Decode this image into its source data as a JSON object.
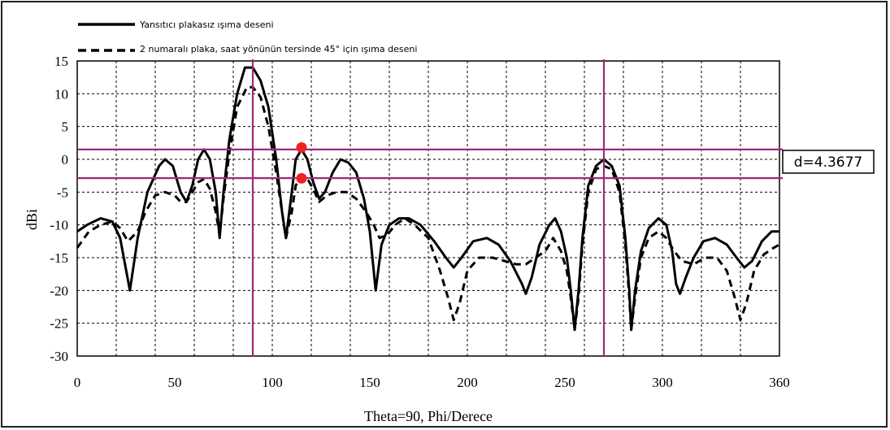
{
  "chart_data": {
    "type": "line",
    "title": "",
    "xlabel": "Theta=90, Phi/Derece",
    "ylabel": "dBi",
    "xlim": [
      0,
      360
    ],
    "ylim": [
      -30,
      15
    ],
    "xticks": [
      0,
      50,
      100,
      150,
      200,
      250,
      300,
      360
    ],
    "yticks": [
      15,
      10,
      5,
      0,
      -5,
      -10,
      -15,
      -20,
      -25,
      -30
    ],
    "grid": true,
    "legend_position": "top-left",
    "series": [
      {
        "name": "Yansıtıcı plakasız ışıma deseni",
        "style": "solid",
        "color": "#000000",
        "points": [
          [
            0,
            -11
          ],
          [
            5,
            -10
          ],
          [
            12,
            -9
          ],
          [
            18,
            -9.5
          ],
          [
            22,
            -12
          ],
          [
            27,
            -20
          ],
          [
            31,
            -12
          ],
          [
            36,
            -5
          ],
          [
            42,
            -1
          ],
          [
            45,
            0
          ],
          [
            49,
            -1
          ],
          [
            53,
            -5
          ],
          [
            56,
            -6.5
          ],
          [
            59,
            -4
          ],
          [
            62,
            0
          ],
          [
            65,
            1.5
          ],
          [
            68,
            0
          ],
          [
            71,
            -5
          ],
          [
            73,
            -12
          ],
          [
            75,
            -5
          ],
          [
            78,
            3
          ],
          [
            82,
            10
          ],
          [
            86,
            14
          ],
          [
            90,
            14
          ],
          [
            94,
            12
          ],
          [
            98,
            8
          ],
          [
            102,
            0
          ],
          [
            105,
            -8
          ],
          [
            107,
            -12
          ],
          [
            110,
            -5
          ],
          [
            112,
            0
          ],
          [
            115,
            1.5
          ],
          [
            118,
            0
          ],
          [
            121,
            -3.5
          ],
          [
            124,
            -6
          ],
          [
            127,
            -5
          ],
          [
            131,
            -2
          ],
          [
            135,
            0
          ],
          [
            139,
            -0.5
          ],
          [
            143,
            -2
          ],
          [
            147,
            -6
          ],
          [
            150,
            -11
          ],
          [
            153,
            -20
          ],
          [
            156,
            -13
          ],
          [
            160,
            -10
          ],
          [
            165,
            -9
          ],
          [
            170,
            -9
          ],
          [
            176,
            -10
          ],
          [
            183,
            -12.5
          ],
          [
            189,
            -15
          ],
          [
            193,
            -16.5
          ],
          [
            197,
            -15
          ],
          [
            203,
            -12.5
          ],
          [
            210,
            -12
          ],
          [
            216,
            -13
          ],
          [
            222,
            -15.5
          ],
          [
            228,
            -19
          ],
          [
            230,
            -20.5
          ],
          [
            233,
            -18
          ],
          [
            237,
            -13
          ],
          [
            242,
            -10
          ],
          [
            245,
            -9
          ],
          [
            248,
            -11
          ],
          [
            251,
            -15
          ],
          [
            253,
            -20
          ],
          [
            255,
            -26
          ],
          [
            257,
            -20
          ],
          [
            259,
            -12
          ],
          [
            262,
            -4
          ],
          [
            266,
            -1
          ],
          [
            270,
            0
          ],
          [
            274,
            -1
          ],
          [
            278,
            -4
          ],
          [
            281,
            -12
          ],
          [
            283,
            -20
          ],
          [
            284,
            -26
          ],
          [
            286,
            -20
          ],
          [
            289,
            -14
          ],
          [
            293,
            -10.5
          ],
          [
            298,
            -9
          ],
          [
            302,
            -10
          ],
          [
            305,
            -14
          ],
          [
            307,
            -19
          ],
          [
            309,
            -20.5
          ],
          [
            312,
            -18
          ],
          [
            316,
            -15
          ],
          [
            321,
            -12.5
          ],
          [
            327,
            -12
          ],
          [
            333,
            -13
          ],
          [
            338,
            -15
          ],
          [
            342,
            -16.5
          ],
          [
            346,
            -15.5
          ],
          [
            351,
            -12.5
          ],
          [
            356,
            -11
          ],
          [
            360,
            -11
          ]
        ]
      },
      {
        "name": "2 numaralı plaka, saat yönünün tersinde 45° için ışıma deseni",
        "style": "dashed",
        "color": "#000000",
        "points": [
          [
            0,
            -13.5
          ],
          [
            6,
            -11
          ],
          [
            12,
            -10
          ],
          [
            18,
            -9.5
          ],
          [
            22,
            -10.5
          ],
          [
            26,
            -12.5
          ],
          [
            31,
            -11
          ],
          [
            35,
            -8
          ],
          [
            40,
            -5.5
          ],
          [
            45,
            -5
          ],
          [
            50,
            -5.5
          ],
          [
            53,
            -6.5
          ],
          [
            56,
            -6.5
          ],
          [
            59,
            -5
          ],
          [
            62,
            -3.5
          ],
          [
            65,
            -3
          ],
          [
            68,
            -4.5
          ],
          [
            71,
            -8
          ],
          [
            73,
            -11.5
          ],
          [
            75,
            -6
          ],
          [
            78,
            1
          ],
          [
            82,
            8
          ],
          [
            87,
            11
          ],
          [
            90,
            11
          ],
          [
            94,
            9.5
          ],
          [
            98,
            5
          ],
          [
            102,
            -2
          ],
          [
            105,
            -8
          ],
          [
            107,
            -12
          ],
          [
            110,
            -8
          ],
          [
            112,
            -4
          ],
          [
            115,
            -2.5
          ],
          [
            118,
            -3
          ],
          [
            121,
            -4.5
          ],
          [
            124,
            -6.5
          ],
          [
            128,
            -5.5
          ],
          [
            133,
            -5
          ],
          [
            138,
            -5
          ],
          [
            143,
            -6
          ],
          [
            148,
            -8
          ],
          [
            152,
            -10
          ],
          [
            155,
            -12
          ],
          [
            159,
            -11.5
          ],
          [
            163,
            -10
          ],
          [
            168,
            -9
          ],
          [
            173,
            -10
          ],
          [
            180,
            -12
          ],
          [
            186,
            -17
          ],
          [
            190,
            -21
          ],
          [
            193,
            -24.5
          ],
          [
            196,
            -22
          ],
          [
            200,
            -17
          ],
          [
            206,
            -15
          ],
          [
            213,
            -15
          ],
          [
            219,
            -15.5
          ],
          [
            225,
            -16
          ],
          [
            230,
            -16
          ],
          [
            235,
            -15
          ],
          [
            240,
            -14
          ],
          [
            244,
            -12
          ],
          [
            248,
            -14
          ],
          [
            251,
            -17
          ],
          [
            253,
            -21
          ],
          [
            255,
            -26
          ],
          [
            257,
            -21
          ],
          [
            259,
            -13
          ],
          [
            262,
            -5
          ],
          [
            266,
            -1.5
          ],
          [
            270,
            -1
          ],
          [
            274,
            -1.5
          ],
          [
            278,
            -5
          ],
          [
            281,
            -13
          ],
          [
            283,
            -21
          ],
          [
            284,
            -26
          ],
          [
            286,
            -21
          ],
          [
            289,
            -15
          ],
          [
            293,
            -12
          ],
          [
            298,
            -11
          ],
          [
            302,
            -12
          ],
          [
            306,
            -14
          ],
          [
            310,
            -15.5
          ],
          [
            316,
            -16
          ],
          [
            322,
            -15
          ],
          [
            328,
            -15
          ],
          [
            333,
            -17
          ],
          [
            337,
            -21
          ],
          [
            340,
            -24.5
          ],
          [
            343,
            -22
          ],
          [
            347,
            -17
          ],
          [
            352,
            -14.5
          ],
          [
            357,
            -13.5
          ],
          [
            360,
            -13
          ]
        ]
      }
    ],
    "markers": {
      "vertical_lines": [
        90,
        270
      ],
      "horizontal_lines": [
        1.5,
        -2.87
      ],
      "points": [
        [
          115,
          1.8
        ],
        [
          115,
          -2.9
        ]
      ],
      "line_color": "#9c2a7a",
      "point_color": "#ee2222"
    },
    "annotation": {
      "text": "d=4.3677"
    }
  }
}
